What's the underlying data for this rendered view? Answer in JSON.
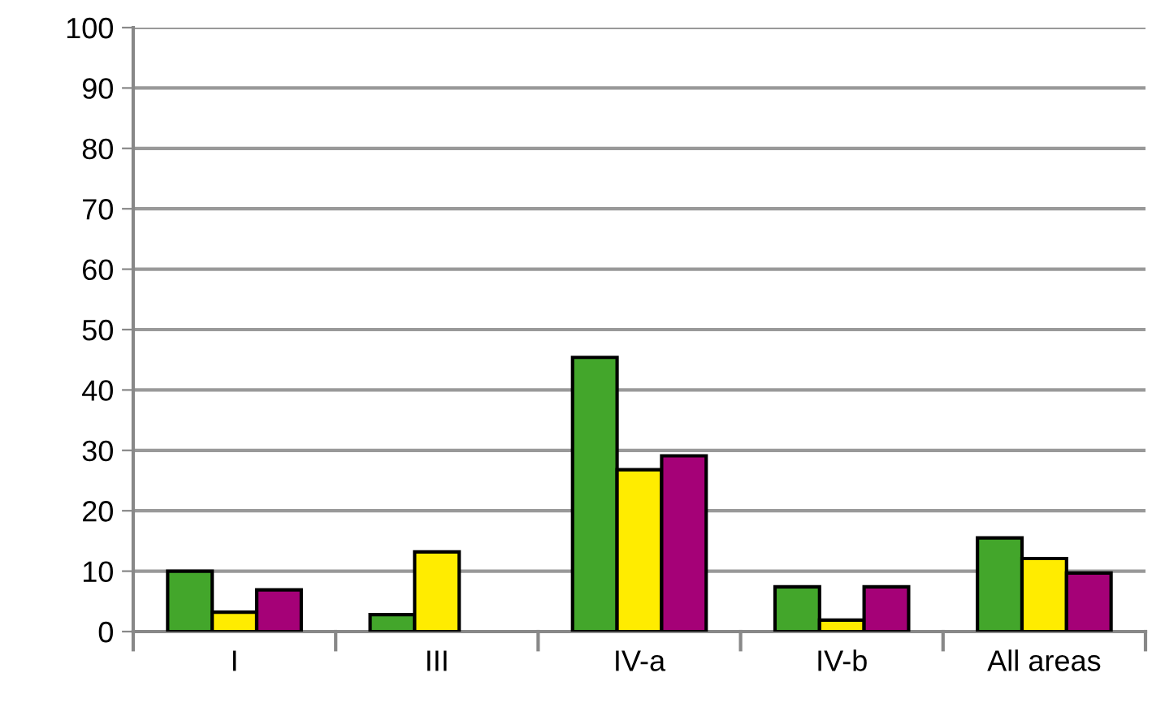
{
  "chart_data": {
    "type": "bar",
    "categories": [
      "I",
      "III",
      "IV-a",
      "IV-b",
      "All areas"
    ],
    "series": [
      {
        "color": "#43a62b",
        "values": [
          10.0,
          2.8,
          45.4,
          7.4,
          15.5
        ]
      },
      {
        "color": "#ffec00",
        "values": [
          3.2,
          13.2,
          26.8,
          1.9,
          12.1
        ]
      },
      {
        "color": "#a50177",
        "values": [
          6.9,
          null,
          29.1,
          7.4,
          9.7
        ]
      }
    ],
    "ylim": [
      0,
      100
    ],
    "yticks": [
      0,
      10,
      20,
      30,
      40,
      50,
      60,
      70,
      80,
      90,
      100
    ],
    "grid": "y"
  }
}
